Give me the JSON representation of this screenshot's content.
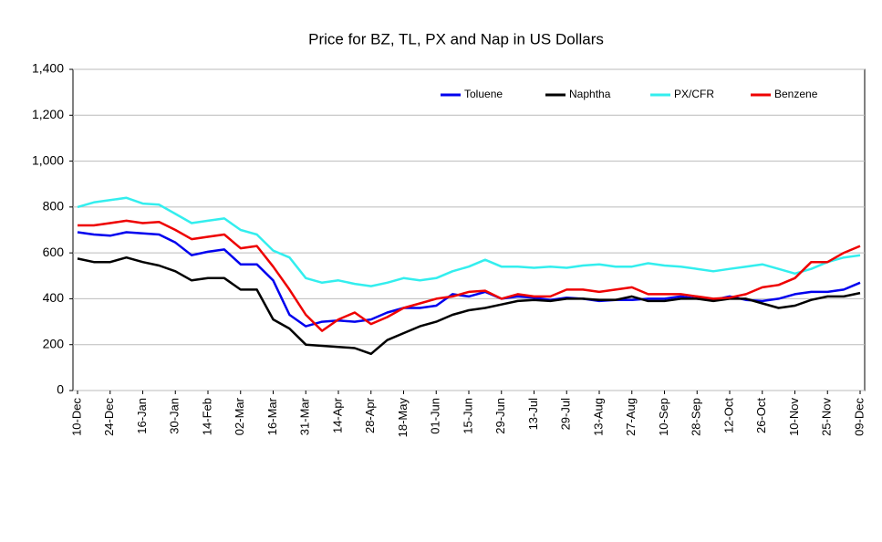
{
  "chart_data": {
    "type": "line",
    "title": "Price for BZ, TL, PX and Nap in US Dollars",
    "categories": [
      "10-Dec",
      null,
      "24-Dec",
      null,
      "16-Jan",
      null,
      "30-Jan",
      null,
      "14-Feb",
      null,
      "02-Mar",
      null,
      "16-Mar",
      null,
      "31-Mar",
      null,
      "14-Apr",
      null,
      "28-Apr",
      null,
      "18-May",
      null,
      "01-Jun",
      null,
      "15-Jun",
      null,
      "29-Jun",
      null,
      "13-Jul",
      null,
      "29-Jul",
      null,
      "13-Aug",
      null,
      "27-Aug",
      null,
      "10-Sep",
      null,
      "28-Sep",
      null,
      "12-Oct",
      null,
      "26-Oct",
      null,
      "10-Nov",
      null,
      "25-Nov",
      null,
      "09-Dec"
    ],
    "series": [
      {
        "name": "Toluene",
        "color": "#0000ee",
        "values": [
          690,
          680,
          675,
          690,
          685,
          680,
          645,
          590,
          605,
          615,
          550,
          550,
          480,
          330,
          280,
          300,
          305,
          300,
          310,
          340,
          360,
          360,
          370,
          420,
          410,
          430,
          400,
          410,
          405,
          395,
          405,
          400,
          390,
          395,
          395,
          400,
          400,
          410,
          400,
          395,
          410,
          395,
          390,
          400,
          420,
          430,
          430,
          440,
          470
        ]
      },
      {
        "name": "Naphtha",
        "color": "#000000",
        "values": [
          575,
          560,
          560,
          580,
          560,
          545,
          520,
          480,
          490,
          490,
          440,
          440,
          310,
          270,
          200,
          195,
          190,
          185,
          160,
          220,
          250,
          280,
          300,
          330,
          350,
          360,
          375,
          390,
          395,
          390,
          400,
          400,
          395,
          395,
          410,
          390,
          390,
          400,
          400,
          390,
          400,
          400,
          380,
          360,
          370,
          395,
          410,
          410,
          425
        ]
      },
      {
        "name": "PX/CFR",
        "color": "#33eeee",
        "values": [
          800,
          820,
          830,
          840,
          815,
          810,
          770,
          730,
          740,
          750,
          700,
          680,
          610,
          580,
          490,
          470,
          480,
          465,
          455,
          470,
          490,
          480,
          490,
          520,
          540,
          570,
          540,
          540,
          535,
          540,
          535,
          545,
          550,
          540,
          540,
          555,
          545,
          540,
          530,
          520,
          530,
          540,
          550,
          530,
          510,
          530,
          560,
          580,
          590
        ]
      },
      {
        "name": "Benzene",
        "color": "#ee0000",
        "values": [
          720,
          720,
          730,
          740,
          730,
          735,
          700,
          660,
          670,
          680,
          620,
          630,
          540,
          440,
          330,
          260,
          310,
          340,
          290,
          320,
          360,
          380,
          400,
          410,
          430,
          435,
          400,
          420,
          410,
          410,
          440,
          440,
          430,
          440,
          450,
          420,
          420,
          420,
          410,
          400,
          405,
          420,
          450,
          460,
          490,
          560,
          560,
          600,
          630
        ]
      }
    ],
    "ylim": [
      0,
      1400
    ],
    "yticks": [
      0,
      200,
      400,
      600,
      800,
      {
        "value": 1000,
        "label": "1,000"
      },
      {
        "value": 1200,
        "label": "1,200"
      },
      {
        "value": 1400,
        "label": "1,400"
      }
    ],
    "grid": true,
    "legend": "top"
  }
}
